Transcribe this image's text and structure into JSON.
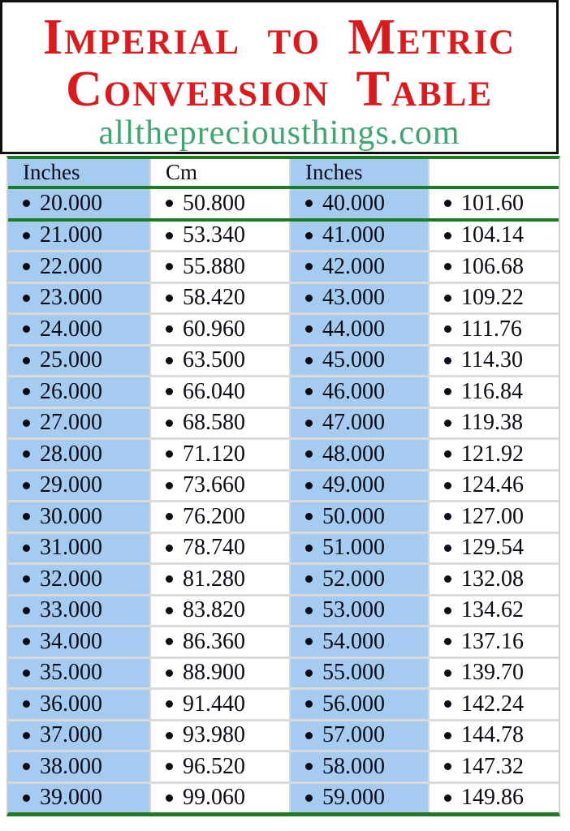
{
  "header": {
    "title_line1": "Imperial to Metric",
    "title_line2": "Conversion Table",
    "website": "allthepreciousthings.com",
    "title_color": "#dc1a1d",
    "website_color": "#3fa571",
    "box_border_color": "#101010"
  },
  "table": {
    "column_headers": [
      "Inches",
      "Cm",
      "Inches",
      ""
    ],
    "header_fills": [
      "#a5cbf1",
      "#ffffff",
      "#a5cbf1",
      "#ffffff"
    ],
    "accent_line_color": "#1e7b21",
    "row_separator_color": "#dadada",
    "inches_column_fill": "#a5cbf1",
    "text_color": "#0c0c16",
    "bullet_icon": "●",
    "rows": [
      [
        "20.000",
        "50.800",
        "40.000",
        "101.60"
      ],
      [
        "21.000",
        "53.340",
        "41.000",
        "104.14"
      ],
      [
        "22.000",
        "55.880",
        "42.000",
        "106.68"
      ],
      [
        "23.000",
        "58.420",
        "43.000",
        "109.22"
      ],
      [
        "24.000",
        "60.960",
        "44.000",
        "111.76"
      ],
      [
        "25.000",
        "63.500",
        "45.000",
        "114.30"
      ],
      [
        "26.000",
        "66.040",
        "46.000",
        "116.84"
      ],
      [
        "27.000",
        "68.580",
        "47.000",
        "119.38"
      ],
      [
        "28.000",
        "71.120",
        "48.000",
        "121.92"
      ],
      [
        "29.000",
        "73.660",
        "49.000",
        "124.46"
      ],
      [
        "30.000",
        "76.200",
        "50.000",
        "127.00"
      ],
      [
        "31.000",
        "78.740",
        "51.000",
        "129.54"
      ],
      [
        "32.000",
        "81.280",
        "52.000",
        "132.08"
      ],
      [
        "33.000",
        "83.820",
        "53.000",
        "134.62"
      ],
      [
        "34.000",
        "86.360",
        "54.000",
        "137.16"
      ],
      [
        "35.000",
        "88.900",
        "55.000",
        "139.70"
      ],
      [
        "36.000",
        "91.440",
        "56.000",
        "142.24"
      ],
      [
        "37.000",
        "93.980",
        "57.000",
        "144.78"
      ],
      [
        "38.000",
        "96.520",
        "58.000",
        "147.32"
      ],
      [
        "39.000",
        "99.060",
        "59.000",
        "149.86"
      ]
    ]
  }
}
